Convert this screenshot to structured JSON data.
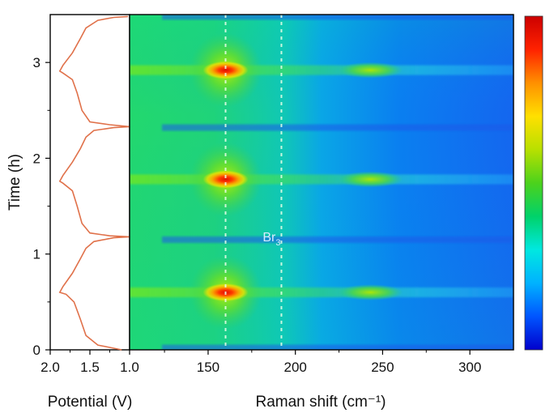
{
  "chart_data": [
    {
      "type": "line",
      "xlabel": "Potential (V)",
      "ylabel": "Time (h)",
      "xlim": [
        2.0,
        1.0
      ],
      "ylim": [
        0,
        3.5
      ],
      "xticks": [
        {
          "value": 2.0,
          "label": "2.0"
        },
        {
          "value": 1.5,
          "label": "1.5"
        },
        {
          "value": 1.0,
          "label": "1.0"
        }
      ],
      "yticks": [
        {
          "value": 0,
          "label": "0"
        },
        {
          "value": 1,
          "label": "1"
        },
        {
          "value": 2,
          "label": "2"
        },
        {
          "value": 3,
          "label": "3"
        }
      ],
      "series": [
        {
          "color": "#e0714a",
          "points": [
            [
              1.1,
              0.0
            ],
            [
              1.4,
              0.05
            ],
            [
              1.55,
              0.15
            ],
            [
              1.62,
              0.32
            ],
            [
              1.7,
              0.5
            ],
            [
              1.8,
              0.58
            ],
            [
              1.88,
              0.6
            ],
            [
              1.84,
              0.66
            ],
            [
              1.72,
              0.8
            ],
            [
              1.62,
              0.95
            ],
            [
              1.55,
              1.06
            ],
            [
              1.45,
              1.13
            ],
            [
              1.2,
              1.17
            ],
            [
              1.0,
              1.18
            ],
            [
              1.25,
              1.19
            ],
            [
              1.5,
              1.22
            ],
            [
              1.6,
              1.32
            ],
            [
              1.66,
              1.5
            ],
            [
              1.72,
              1.66
            ],
            [
              1.84,
              1.74
            ],
            [
              1.88,
              1.76
            ],
            [
              1.84,
              1.82
            ],
            [
              1.72,
              1.96
            ],
            [
              1.62,
              2.1
            ],
            [
              1.55,
              2.22
            ],
            [
              1.45,
              2.29
            ],
            [
              1.2,
              2.32
            ],
            [
              1.0,
              2.33
            ],
            [
              1.25,
              2.35
            ],
            [
              1.5,
              2.38
            ],
            [
              1.6,
              2.5
            ],
            [
              1.66,
              2.68
            ],
            [
              1.72,
              2.82
            ],
            [
              1.84,
              2.89
            ],
            [
              1.88,
              2.91
            ],
            [
              1.84,
              2.97
            ],
            [
              1.72,
              3.1
            ],
            [
              1.62,
              3.25
            ],
            [
              1.55,
              3.36
            ],
            [
              1.4,
              3.44
            ],
            [
              1.2,
              3.47
            ],
            [
              1.02,
              3.48
            ]
          ]
        }
      ]
    },
    {
      "type": "heatmap",
      "xlabel": "Raman shift (cm⁻¹)",
      "ylabel": "Time (h)",
      "xlim": [
        105,
        325
      ],
      "ylim": [
        0,
        3.5
      ],
      "xticks": [
        {
          "value": 150,
          "label": "150"
        },
        {
          "value": 200,
          "label": "200"
        },
        {
          "value": 250,
          "label": "250"
        },
        {
          "value": 300,
          "label": "300"
        }
      ],
      "yticks": [
        0,
        1,
        2,
        3
      ],
      "reference_lines_x": [
        160,
        192
      ],
      "annotation": {
        "text": "Br",
        "subscript": "3",
        "x": 185,
        "y": 1.15
      },
      "colormap": [
        "#0000cc",
        "#0055ff",
        "#00b2ff",
        "#00e8e0",
        "#00d26a",
        "#4cd21c",
        "#b8e000",
        "#ffe000",
        "#ff9000",
        "#ff2200",
        "#cc0000"
      ],
      "peaks": [
        {
          "x": 160,
          "y": 0.6,
          "intensity": 1.0
        },
        {
          "x": 160,
          "y": 1.78,
          "intensity": 0.97
        },
        {
          "x": 160,
          "y": 2.92,
          "intensity": 1.0
        },
        {
          "x": 243,
          "y": 0.6,
          "intensity": 0.55
        },
        {
          "x": 243,
          "y": 1.78,
          "intensity": 0.55
        },
        {
          "x": 243,
          "y": 2.92,
          "intensity": 0.5
        }
      ],
      "dips_y": [
        0.02,
        1.15,
        2.32,
        3.48
      ]
    }
  ],
  "colorbar": {
    "min": 0,
    "max": 1
  }
}
